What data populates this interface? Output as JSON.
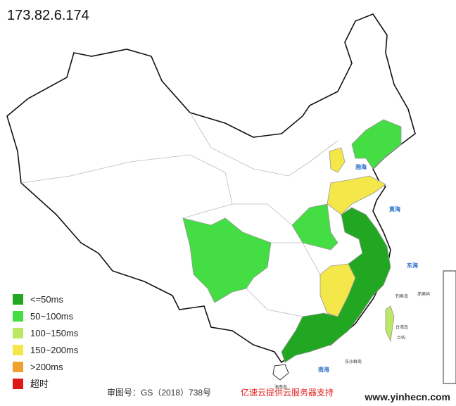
{
  "title": "173.82.6.174",
  "legend": [
    {
      "label": "<=50ms",
      "color": "#22a722"
    },
    {
      "label": "50~100ms",
      "color": "#44dd44"
    },
    {
      "label": "100~150ms",
      "color": "#bbe966"
    },
    {
      "label": "150~200ms",
      "color": "#f3e74a"
    },
    {
      "label": ">200ms",
      "color": "#f0a030"
    },
    {
      "label": "超时",
      "color": "#dd1a1a"
    }
  ],
  "sea_labels": [
    "渤海",
    "黄海",
    "东海",
    "南海"
  ],
  "island_labels": [
    "钓鱼岛",
    "赤尾屿",
    "台湾岛",
    "兰屿",
    "东沙群岛",
    "海南岛"
  ],
  "footer": {
    "approval": "审图号：GS（2018）738号",
    "sponsor": "亿速云提供云服务器支持",
    "site": "www.yinhecn.com"
  }
}
